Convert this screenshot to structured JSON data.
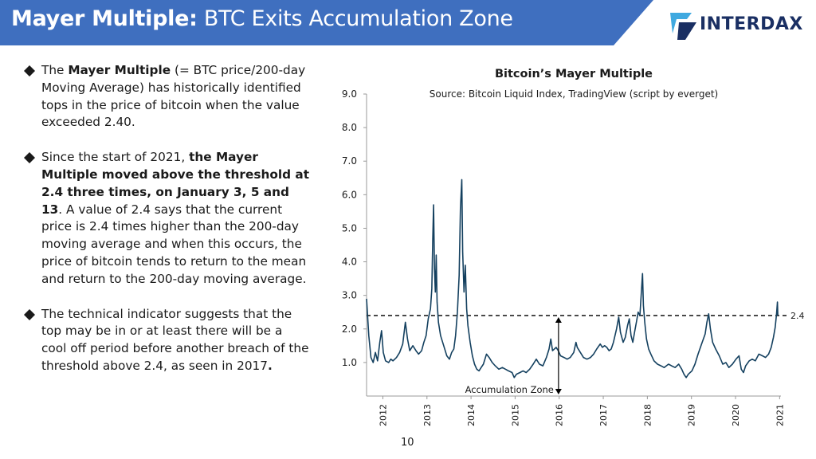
{
  "header": {
    "title_bold": "Mayer Multiple:",
    "title_rest": " BTC Exits Accumulation Zone",
    "banner_color": "#3f6fbf"
  },
  "logo": {
    "text": "INTERDAX",
    "color": "#1a2f63",
    "accent": "#3fa9e0"
  },
  "bullets": [
    {
      "parts": [
        {
          "t": "The ",
          "b": false
        },
        {
          "t": "Mayer Multiple",
          "b": true
        },
        {
          "t": " (= BTC price/200-day Moving Average) has historically identified tops in the price of bitcoin when the value exceeded 2.40.",
          "b": false
        }
      ]
    },
    {
      "parts": [
        {
          "t": "Since the start of 2021, ",
          "b": false
        },
        {
          "t": "the Mayer Multiple moved above the threshold at 2.4 three times, on January 3, 5 and 13",
          "b": true
        },
        {
          "t": ". A value of 2.4 says that the current price is 2.4 times higher than the 200-day moving average and when this occurs, the price of bitcoin tends to return to the mean and return to the 200-day moving average.",
          "b": false
        }
      ]
    },
    {
      "parts": [
        {
          "t": "The technical indicator suggests that the top may be in or at least there will be a cool off period before another breach of the threshold above 2.4, as seen in 2017",
          "b": false
        },
        {
          "t": ".",
          "b": true
        }
      ]
    }
  ],
  "page_number": "10",
  "chart_data": {
    "type": "line",
    "title": "Bitcoin’s Mayer Multiple",
    "subtitle": "Source: Bitcoin Liquid Index, TradingView (script by everget)",
    "ylim": [
      0,
      9.0
    ],
    "yticks": [
      "1.0",
      "2.0",
      "3.0",
      "4.0",
      "5.0",
      "6.0",
      "7.0",
      "8.0",
      "9.0"
    ],
    "xlim": [
      2011.7,
      2021.1
    ],
    "xticks": [
      "2012",
      "2013",
      "2014",
      "2015",
      "2016",
      "2017",
      "2018",
      "2019",
      "2020",
      "2021"
    ],
    "line_color": "#14405f",
    "threshold": {
      "value": 2.4,
      "label": "2.4",
      "style": "dashed"
    },
    "annotation": {
      "text": "Accumulation Zone",
      "x": 2016.0,
      "y_from": 0.0,
      "y_to": 2.35
    },
    "series": [
      {
        "points": [
          [
            2011.7,
            2.9
          ],
          [
            2011.75,
            1.8
          ],
          [
            2011.8,
            1.15
          ],
          [
            2011.85,
            1.0
          ],
          [
            2011.9,
            1.3
          ],
          [
            2011.95,
            1.05
          ],
          [
            2012.0,
            1.6
          ],
          [
            2012.04,
            1.95
          ],
          [
            2012.08,
            1.3
          ],
          [
            2012.13,
            1.05
          ],
          [
            2012.2,
            1.0
          ],
          [
            2012.25,
            1.1
          ],
          [
            2012.3,
            1.05
          ],
          [
            2012.38,
            1.15
          ],
          [
            2012.45,
            1.3
          ],
          [
            2012.52,
            1.55
          ],
          [
            2012.58,
            2.2
          ],
          [
            2012.63,
            1.7
          ],
          [
            2012.68,
            1.35
          ],
          [
            2012.75,
            1.5
          ],
          [
            2012.82,
            1.35
          ],
          [
            2012.88,
            1.25
          ],
          [
            2012.95,
            1.35
          ],
          [
            2013.0,
            1.6
          ],
          [
            2013.05,
            1.8
          ],
          [
            2013.1,
            2.3
          ],
          [
            2013.15,
            2.6
          ],
          [
            2013.18,
            3.2
          ],
          [
            2013.2,
            4.6
          ],
          [
            2013.22,
            5.7
          ],
          [
            2013.24,
            3.8
          ],
          [
            2013.26,
            3.1
          ],
          [
            2013.28,
            4.2
          ],
          [
            2013.3,
            2.8
          ],
          [
            2013.33,
            2.2
          ],
          [
            2013.38,
            1.8
          ],
          [
            2013.45,
            1.5
          ],
          [
            2013.52,
            1.2
          ],
          [
            2013.58,
            1.1
          ],
          [
            2013.63,
            1.3
          ],
          [
            2013.68,
            1.4
          ],
          [
            2013.72,
            1.8
          ],
          [
            2013.76,
            2.5
          ],
          [
            2013.8,
            3.6
          ],
          [
            2013.83,
            5.6
          ],
          [
            2013.86,
            6.45
          ],
          [
            2013.88,
            4.3
          ],
          [
            2013.91,
            3.1
          ],
          [
            2013.94,
            3.9
          ],
          [
            2013.97,
            2.6
          ],
          [
            2014.0,
            2.1
          ],
          [
            2014.05,
            1.6
          ],
          [
            2014.1,
            1.2
          ],
          [
            2014.15,
            0.95
          ],
          [
            2014.2,
            0.8
          ],
          [
            2014.25,
            0.75
          ],
          [
            2014.3,
            0.85
          ],
          [
            2014.35,
            0.95
          ],
          [
            2014.42,
            1.25
          ],
          [
            2014.48,
            1.15
          ],
          [
            2014.55,
            1.0
          ],
          [
            2014.62,
            0.9
          ],
          [
            2014.7,
            0.8
          ],
          [
            2014.78,
            0.85
          ],
          [
            2014.85,
            0.8
          ],
          [
            2014.92,
            0.75
          ],
          [
            2015.0,
            0.7
          ],
          [
            2015.05,
            0.55
          ],
          [
            2015.1,
            0.65
          ],
          [
            2015.18,
            0.7
          ],
          [
            2015.25,
            0.75
          ],
          [
            2015.32,
            0.7
          ],
          [
            2015.4,
            0.8
          ],
          [
            2015.48,
            0.95
          ],
          [
            2015.55,
            1.1
          ],
          [
            2015.62,
            0.95
          ],
          [
            2015.7,
            0.9
          ],
          [
            2015.78,
            1.15
          ],
          [
            2015.84,
            1.4
          ],
          [
            2015.88,
            1.7
          ],
          [
            2015.92,
            1.35
          ],
          [
            2016.0,
            1.45
          ],
          [
            2016.05,
            1.35
          ],
          [
            2016.1,
            1.2
          ],
          [
            2016.18,
            1.15
          ],
          [
            2016.25,
            1.1
          ],
          [
            2016.32,
            1.15
          ],
          [
            2016.4,
            1.3
          ],
          [
            2016.45,
            1.6
          ],
          [
            2016.48,
            1.45
          ],
          [
            2016.55,
            1.3
          ],
          [
            2016.62,
            1.15
          ],
          [
            2016.7,
            1.1
          ],
          [
            2016.78,
            1.15
          ],
          [
            2016.85,
            1.25
          ],
          [
            2016.92,
            1.4
          ],
          [
            2017.0,
            1.55
          ],
          [
            2017.05,
            1.45
          ],
          [
            2017.1,
            1.5
          ],
          [
            2017.15,
            1.45
          ],
          [
            2017.2,
            1.35
          ],
          [
            2017.25,
            1.4
          ],
          [
            2017.3,
            1.6
          ],
          [
            2017.37,
            2.0
          ],
          [
            2017.42,
            2.35
          ],
          [
            2017.46,
            1.9
          ],
          [
            2017.52,
            1.6
          ],
          [
            2017.57,
            1.75
          ],
          [
            2017.62,
            2.1
          ],
          [
            2017.66,
            2.3
          ],
          [
            2017.7,
            1.8
          ],
          [
            2017.74,
            1.6
          ],
          [
            2017.78,
            1.9
          ],
          [
            2017.82,
            2.2
          ],
          [
            2017.86,
            2.5
          ],
          [
            2017.9,
            2.4
          ],
          [
            2017.93,
            3.0
          ],
          [
            2017.96,
            3.65
          ],
          [
            2017.98,
            2.7
          ],
          [
            2018.01,
            2.2
          ],
          [
            2018.05,
            1.7
          ],
          [
            2018.1,
            1.4
          ],
          [
            2018.15,
            1.25
          ],
          [
            2018.22,
            1.05
          ],
          [
            2018.3,
            0.95
          ],
          [
            2018.38,
            0.9
          ],
          [
            2018.45,
            0.85
          ],
          [
            2018.55,
            0.95
          ],
          [
            2018.62,
            0.9
          ],
          [
            2018.7,
            0.85
          ],
          [
            2018.78,
            0.95
          ],
          [
            2018.85,
            0.8
          ],
          [
            2018.9,
            0.65
          ],
          [
            2018.95,
            0.55
          ],
          [
            2019.0,
            0.65
          ],
          [
            2019.08,
            0.75
          ],
          [
            2019.15,
            0.95
          ],
          [
            2019.22,
            1.25
          ],
          [
            2019.3,
            1.55
          ],
          [
            2019.38,
            1.85
          ],
          [
            2019.42,
            2.2
          ],
          [
            2019.46,
            2.45
          ],
          [
            2019.5,
            2.0
          ],
          [
            2019.55,
            1.6
          ],
          [
            2019.62,
            1.4
          ],
          [
            2019.7,
            1.2
          ],
          [
            2019.78,
            0.95
          ],
          [
            2019.85,
            1.0
          ],
          [
            2019.92,
            0.85
          ],
          [
            2020.0,
            0.95
          ],
          [
            2020.08,
            1.1
          ],
          [
            2020.15,
            1.2
          ],
          [
            2020.2,
            0.8
          ],
          [
            2020.25,
            0.7
          ],
          [
            2020.3,
            0.9
          ],
          [
            2020.38,
            1.05
          ],
          [
            2020.45,
            1.1
          ],
          [
            2020.52,
            1.05
          ],
          [
            2020.6,
            1.25
          ],
          [
            2020.68,
            1.2
          ],
          [
            2020.75,
            1.15
          ],
          [
            2020.82,
            1.25
          ],
          [
            2020.88,
            1.45
          ],
          [
            2020.93,
            1.75
          ],
          [
            2020.97,
            2.05
          ],
          [
            2021.0,
            2.45
          ],
          [
            2021.02,
            2.8
          ],
          [
            2021.03,
            2.4
          ]
        ]
      }
    ]
  }
}
